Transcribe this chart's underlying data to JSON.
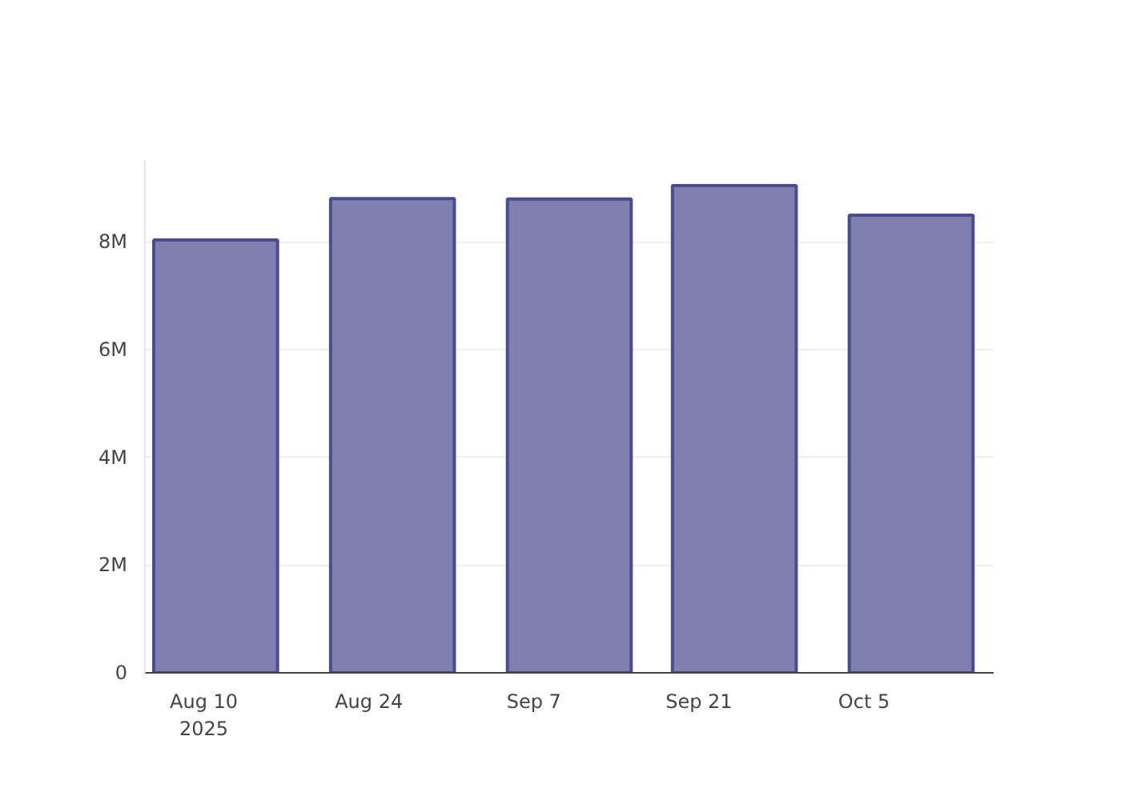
{
  "chart_data": {
    "type": "bar",
    "x": [
      "2025-08-11",
      "2025-08-26",
      "2025-09-10",
      "2025-09-24",
      "2025-10-09"
    ],
    "values": [
      8030000,
      8800000,
      8790000,
      9040000,
      8490000
    ],
    "color": "#7f7fb0",
    "xlim": [
      "2025-08-05",
      "2025-10-16"
    ],
    "xticks": [
      {
        "value": "2025-08-10",
        "label": "Aug 10\n2025"
      },
      {
        "value": "2025-08-24",
        "label": "Aug 24"
      },
      {
        "value": "2025-09-07",
        "label": "Sep 7"
      },
      {
        "value": "2025-09-21",
        "label": "Sep 21"
      },
      {
        "value": "2025-10-05",
        "label": "Oct 5"
      }
    ],
    "yticks": [
      {
        "value": 0,
        "label": "0"
      },
      {
        "value": 2000000,
        "label": "2M"
      },
      {
        "value": 4000000,
        "label": "4M"
      },
      {
        "value": 6000000,
        "label": "6M"
      },
      {
        "value": 8000000,
        "label": "8M"
      }
    ],
    "ylim": [
      0,
      9500000
    ],
    "grid": "y"
  }
}
